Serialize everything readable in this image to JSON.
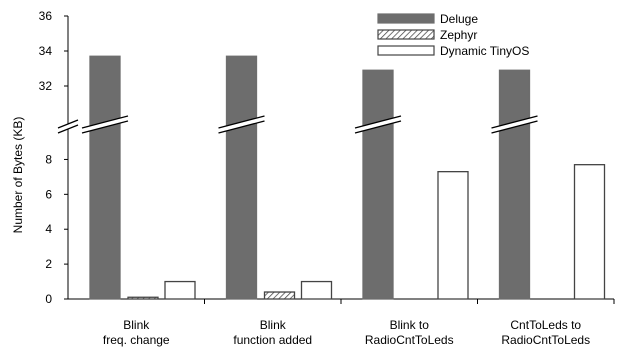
{
  "chart_data": {
    "type": "bar",
    "ylabel": "Number of Bytes (KB)",
    "xlabel": "",
    "title": "",
    "categories": [
      [
        "Blink",
        "freq. change"
      ],
      [
        "Blink",
        "function added"
      ],
      [
        "Blink to",
        "RadioCntToLeds"
      ],
      [
        "CntToLeds to",
        "RadioCntToLeds"
      ]
    ],
    "series": [
      {
        "name": "Deluge",
        "values": [
          33.7,
          33.7,
          32.9,
          32.9
        ]
      },
      {
        "name": "Zephyr",
        "values": [
          0.1,
          0.4,
          null,
          null
        ]
      },
      {
        "name": "Dynamic TinyOS",
        "values": [
          1.0,
          1.0,
          7.3,
          7.7
        ]
      }
    ],
    "y_axis_broken": true,
    "y_segments": [
      {
        "range": [
          0,
          9
        ],
        "ticks": [
          0,
          2,
          4,
          6,
          8
        ]
      },
      {
        "range": [
          30,
          36
        ],
        "ticks": [
          32,
          34,
          36
        ]
      }
    ],
    "ylim": [
      0,
      36
    ],
    "grid": false,
    "legend_position": "top-right",
    "colors": {
      "Deluge": "#6d6d6d",
      "Zephyr": "hatched",
      "Dynamic TinyOS": "#ffffff"
    }
  }
}
